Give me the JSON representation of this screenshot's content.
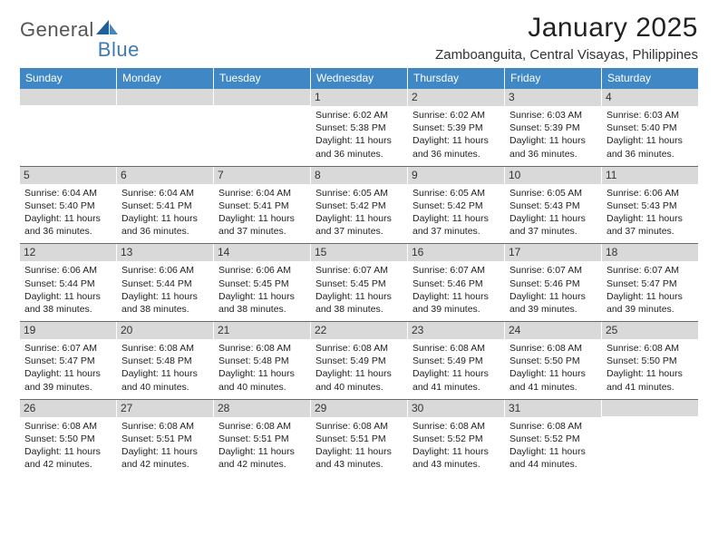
{
  "logo": {
    "text1": "General",
    "text2": "Blue"
  },
  "title": "January 2025",
  "subtitle": "Zamboanguita, Central Visayas, Philippines",
  "colors": {
    "header_bg": "#3f88c5",
    "header_text": "#ffffff",
    "daynum_bg": "#d9d9d9",
    "divider": "#6a6a6a",
    "logo_blue": "#3f7ab5",
    "logo_gray": "#555555",
    "page_bg": "#ffffff",
    "body_text": "#222222"
  },
  "typography": {
    "title_fontsize": 30,
    "subtitle_fontsize": 15,
    "dow_fontsize": 12,
    "daynum_fontsize": 12,
    "body_fontsize": 10.5
  },
  "dow": [
    "Sunday",
    "Monday",
    "Tuesday",
    "Wednesday",
    "Thursday",
    "Friday",
    "Saturday"
  ],
  "weeks": [
    [
      {
        "num": "",
        "lines": []
      },
      {
        "num": "",
        "lines": []
      },
      {
        "num": "",
        "lines": []
      },
      {
        "num": "1",
        "lines": [
          "Sunrise: 6:02 AM",
          "Sunset: 5:38 PM",
          "Daylight: 11 hours and 36 minutes."
        ]
      },
      {
        "num": "2",
        "lines": [
          "Sunrise: 6:02 AM",
          "Sunset: 5:39 PM",
          "Daylight: 11 hours and 36 minutes."
        ]
      },
      {
        "num": "3",
        "lines": [
          "Sunrise: 6:03 AM",
          "Sunset: 5:39 PM",
          "Daylight: 11 hours and 36 minutes."
        ]
      },
      {
        "num": "4",
        "lines": [
          "Sunrise: 6:03 AM",
          "Sunset: 5:40 PM",
          "Daylight: 11 hours and 36 minutes."
        ]
      }
    ],
    [
      {
        "num": "5",
        "lines": [
          "Sunrise: 6:04 AM",
          "Sunset: 5:40 PM",
          "Daylight: 11 hours and 36 minutes."
        ]
      },
      {
        "num": "6",
        "lines": [
          "Sunrise: 6:04 AM",
          "Sunset: 5:41 PM",
          "Daylight: 11 hours and 36 minutes."
        ]
      },
      {
        "num": "7",
        "lines": [
          "Sunrise: 6:04 AM",
          "Sunset: 5:41 PM",
          "Daylight: 11 hours and 37 minutes."
        ]
      },
      {
        "num": "8",
        "lines": [
          "Sunrise: 6:05 AM",
          "Sunset: 5:42 PM",
          "Daylight: 11 hours and 37 minutes."
        ]
      },
      {
        "num": "9",
        "lines": [
          "Sunrise: 6:05 AM",
          "Sunset: 5:42 PM",
          "Daylight: 11 hours and 37 minutes."
        ]
      },
      {
        "num": "10",
        "lines": [
          "Sunrise: 6:05 AM",
          "Sunset: 5:43 PM",
          "Daylight: 11 hours and 37 minutes."
        ]
      },
      {
        "num": "11",
        "lines": [
          "Sunrise: 6:06 AM",
          "Sunset: 5:43 PM",
          "Daylight: 11 hours and 37 minutes."
        ]
      }
    ],
    [
      {
        "num": "12",
        "lines": [
          "Sunrise: 6:06 AM",
          "Sunset: 5:44 PM",
          "Daylight: 11 hours and 38 minutes."
        ]
      },
      {
        "num": "13",
        "lines": [
          "Sunrise: 6:06 AM",
          "Sunset: 5:44 PM",
          "Daylight: 11 hours and 38 minutes."
        ]
      },
      {
        "num": "14",
        "lines": [
          "Sunrise: 6:06 AM",
          "Sunset: 5:45 PM",
          "Daylight: 11 hours and 38 minutes."
        ]
      },
      {
        "num": "15",
        "lines": [
          "Sunrise: 6:07 AM",
          "Sunset: 5:45 PM",
          "Daylight: 11 hours and 38 minutes."
        ]
      },
      {
        "num": "16",
        "lines": [
          "Sunrise: 6:07 AM",
          "Sunset: 5:46 PM",
          "Daylight: 11 hours and 39 minutes."
        ]
      },
      {
        "num": "17",
        "lines": [
          "Sunrise: 6:07 AM",
          "Sunset: 5:46 PM",
          "Daylight: 11 hours and 39 minutes."
        ]
      },
      {
        "num": "18",
        "lines": [
          "Sunrise: 6:07 AM",
          "Sunset: 5:47 PM",
          "Daylight: 11 hours and 39 minutes."
        ]
      }
    ],
    [
      {
        "num": "19",
        "lines": [
          "Sunrise: 6:07 AM",
          "Sunset: 5:47 PM",
          "Daylight: 11 hours and 39 minutes."
        ]
      },
      {
        "num": "20",
        "lines": [
          "Sunrise: 6:08 AM",
          "Sunset: 5:48 PM",
          "Daylight: 11 hours and 40 minutes."
        ]
      },
      {
        "num": "21",
        "lines": [
          "Sunrise: 6:08 AM",
          "Sunset: 5:48 PM",
          "Daylight: 11 hours and 40 minutes."
        ]
      },
      {
        "num": "22",
        "lines": [
          "Sunrise: 6:08 AM",
          "Sunset: 5:49 PM",
          "Daylight: 11 hours and 40 minutes."
        ]
      },
      {
        "num": "23",
        "lines": [
          "Sunrise: 6:08 AM",
          "Sunset: 5:49 PM",
          "Daylight: 11 hours and 41 minutes."
        ]
      },
      {
        "num": "24",
        "lines": [
          "Sunrise: 6:08 AM",
          "Sunset: 5:50 PM",
          "Daylight: 11 hours and 41 minutes."
        ]
      },
      {
        "num": "25",
        "lines": [
          "Sunrise: 6:08 AM",
          "Sunset: 5:50 PM",
          "Daylight: 11 hours and 41 minutes."
        ]
      }
    ],
    [
      {
        "num": "26",
        "lines": [
          "Sunrise: 6:08 AM",
          "Sunset: 5:50 PM",
          "Daylight: 11 hours and 42 minutes."
        ]
      },
      {
        "num": "27",
        "lines": [
          "Sunrise: 6:08 AM",
          "Sunset: 5:51 PM",
          "Daylight: 11 hours and 42 minutes."
        ]
      },
      {
        "num": "28",
        "lines": [
          "Sunrise: 6:08 AM",
          "Sunset: 5:51 PM",
          "Daylight: 11 hours and 42 minutes."
        ]
      },
      {
        "num": "29",
        "lines": [
          "Sunrise: 6:08 AM",
          "Sunset: 5:51 PM",
          "Daylight: 11 hours and 43 minutes."
        ]
      },
      {
        "num": "30",
        "lines": [
          "Sunrise: 6:08 AM",
          "Sunset: 5:52 PM",
          "Daylight: 11 hours and 43 minutes."
        ]
      },
      {
        "num": "31",
        "lines": [
          "Sunrise: 6:08 AM",
          "Sunset: 5:52 PM",
          "Daylight: 11 hours and 44 minutes."
        ]
      },
      {
        "num": "",
        "lines": []
      }
    ]
  ]
}
